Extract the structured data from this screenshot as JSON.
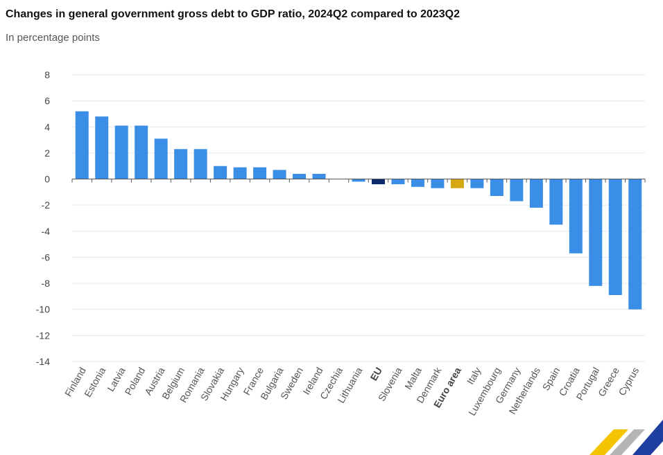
{
  "chart_data": {
    "type": "bar",
    "title": "Changes in general government gross debt to GDP ratio, 2024Q2 compared to 2023Q2",
    "subtitle": "In percentage points",
    "xlabel": "",
    "ylabel": "",
    "ylim": [
      -14,
      8
    ],
    "yticks": [
      8,
      6,
      4,
      2,
      0,
      -2,
      -4,
      -6,
      -8,
      -10,
      -12,
      -14
    ],
    "grid": true,
    "categories": [
      "Finland",
      "Estonia",
      "Latvia",
      "Poland",
      "Austria",
      "Belgium",
      "Romania",
      "Slovakia",
      "Hungary",
      "France",
      "Bulgaria",
      "Sweden",
      "Ireland",
      "Czechia",
      "Lithuania",
      "EU",
      "Slovenia",
      "Malta",
      "Denmark",
      "Euro area",
      "Italy",
      "Luxembourg",
      "Germany",
      "Netherlands",
      "Spain",
      "Croatia",
      "Portugal",
      "Greece",
      "Cyprus"
    ],
    "values": [
      5.2,
      4.8,
      4.1,
      4.1,
      3.1,
      2.3,
      2.3,
      1.0,
      0.9,
      0.9,
      0.7,
      0.4,
      0.4,
      0.0,
      -0.2,
      -0.4,
      -0.4,
      -0.6,
      -0.7,
      -0.7,
      -0.7,
      -1.3,
      -1.7,
      -2.2,
      -3.5,
      -5.7,
      -8.2,
      -8.9,
      -10.0
    ],
    "highlight": {
      "EU": "eu",
      "Euro area": "ea"
    },
    "colors": {
      "default": "#3b8ee6",
      "eu": "#0d2b6b",
      "ea": "#d4a713",
      "grid": "#e3e8ef",
      "axis": "#555555"
    }
  }
}
